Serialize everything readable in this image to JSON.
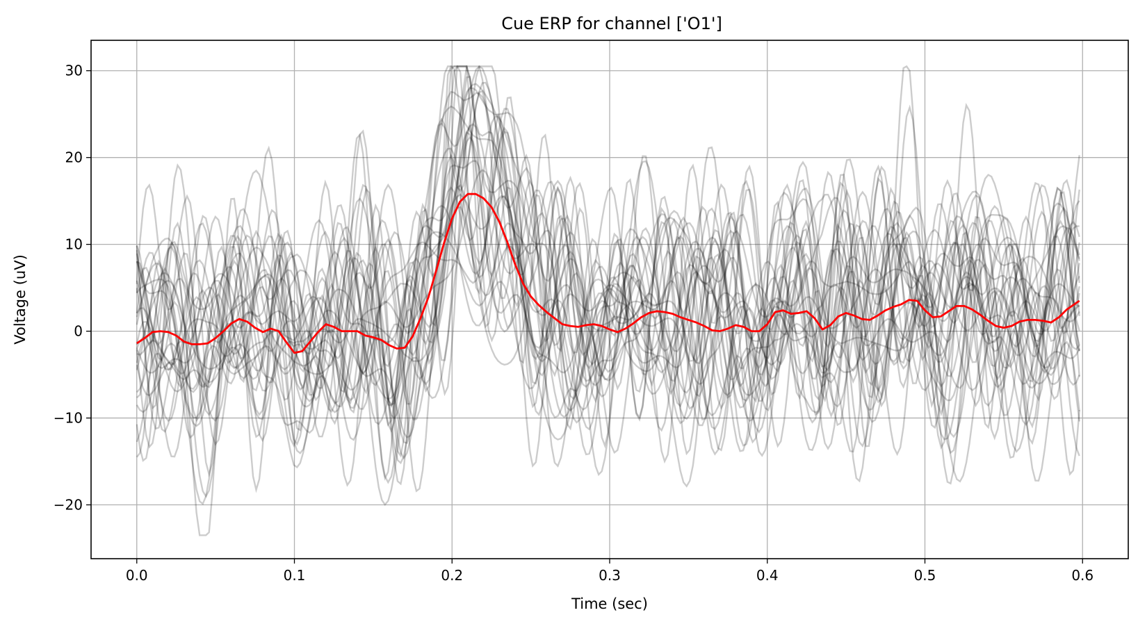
{
  "chart_data": {
    "type": "line",
    "title": "Cue ERP for channel ['O1']",
    "xlabel": "Time (sec)",
    "ylabel": "Voltage (uV)",
    "xlim": [
      -0.029,
      0.629
    ],
    "ylim": [
      -26.2,
      33.5
    ],
    "x_ticks": [
      0.0,
      0.1,
      0.2,
      0.3,
      0.4,
      0.5,
      0.6
    ],
    "x_tick_labels": [
      "0.0",
      "0.1",
      "0.2",
      "0.3",
      "0.4",
      "0.5",
      "0.6"
    ],
    "y_ticks": [
      -20,
      -10,
      0,
      10,
      20,
      30
    ],
    "y_tick_labels": [
      "−20",
      "−10",
      "0",
      "10",
      "20",
      "30"
    ],
    "grid": true,
    "colors": {
      "trials": "#000000",
      "trial_opacity": 0.2,
      "average": "#ff0000",
      "grid": "#b0b0b0"
    },
    "trials_description_count": 30,
    "series": [
      {
        "name": "",
        "role": "average",
        "x": [
          0.0,
          0.005,
          0.01,
          0.015,
          0.02,
          0.025,
          0.03,
          0.035,
          0.04,
          0.045,
          0.05,
          0.055,
          0.06,
          0.065,
          0.07,
          0.075,
          0.08,
          0.085,
          0.09,
          0.095,
          0.1,
          0.105,
          0.11,
          0.115,
          0.12,
          0.125,
          0.13,
          0.135,
          0.14,
          0.145,
          0.15,
          0.155,
          0.16,
          0.165,
          0.17,
          0.175,
          0.18,
          0.185,
          0.19,
          0.195,
          0.2,
          0.205,
          0.21,
          0.215,
          0.22,
          0.225,
          0.23,
          0.235,
          0.24,
          0.245,
          0.25,
          0.255,
          0.26,
          0.265,
          0.27,
          0.275,
          0.28,
          0.285,
          0.29,
          0.295,
          0.3,
          0.305,
          0.31,
          0.315,
          0.32,
          0.325,
          0.33,
          0.335,
          0.34,
          0.345,
          0.35,
          0.355,
          0.36,
          0.365,
          0.37,
          0.375,
          0.38,
          0.385,
          0.39,
          0.395,
          0.4,
          0.405,
          0.41,
          0.415,
          0.42,
          0.425,
          0.43,
          0.435,
          0.44,
          0.445,
          0.45,
          0.455,
          0.46,
          0.465,
          0.47,
          0.475,
          0.48,
          0.485,
          0.49,
          0.495,
          0.5,
          0.505,
          0.51,
          0.515,
          0.52,
          0.525,
          0.53,
          0.535,
          0.54,
          0.545,
          0.55,
          0.555,
          0.56,
          0.565,
          0.57,
          0.575,
          0.58,
          0.585,
          0.59,
          0.598
        ],
        "values": [
          -1.4,
          -0.8,
          -0.1,
          0.0,
          -0.1,
          -0.5,
          -1.2,
          -1.5,
          -1.5,
          -1.4,
          -0.8,
          0.0,
          0.9,
          1.4,
          1.1,
          0.4,
          -0.1,
          0.3,
          0.0,
          -1.3,
          -2.5,
          -2.3,
          -1.2,
          -0.1,
          0.8,
          0.5,
          0.0,
          0.0,
          0.0,
          -0.5,
          -0.7,
          -1.0,
          -1.6,
          -2.0,
          -1.9,
          -0.6,
          1.5,
          3.9,
          7.0,
          10.2,
          13.0,
          14.9,
          15.8,
          15.8,
          15.3,
          14.3,
          12.6,
          10.3,
          7.7,
          5.5,
          4.0,
          3.0,
          2.2,
          1.5,
          0.8,
          0.6,
          0.5,
          0.7,
          0.8,
          0.6,
          0.2,
          -0.1,
          0.3,
          0.9,
          1.6,
          2.1,
          2.3,
          2.2,
          2.0,
          1.6,
          1.3,
          1.0,
          0.6,
          0.1,
          0.0,
          0.3,
          0.7,
          0.5,
          0.0,
          0.0,
          0.8,
          2.2,
          2.4,
          2.0,
          2.1,
          2.3,
          1.5,
          0.2,
          0.7,
          1.7,
          2.1,
          1.8,
          1.4,
          1.3,
          1.8,
          2.4,
          2.8,
          3.1,
          3.6,
          3.5,
          2.4,
          1.6,
          1.7,
          2.3,
          2.9,
          2.9,
          2.5,
          1.9,
          1.2,
          0.6,
          0.4,
          0.6,
          1.1,
          1.3,
          1.3,
          1.2,
          1.0,
          1.6,
          2.5,
          3.5
        ]
      }
    ]
  }
}
